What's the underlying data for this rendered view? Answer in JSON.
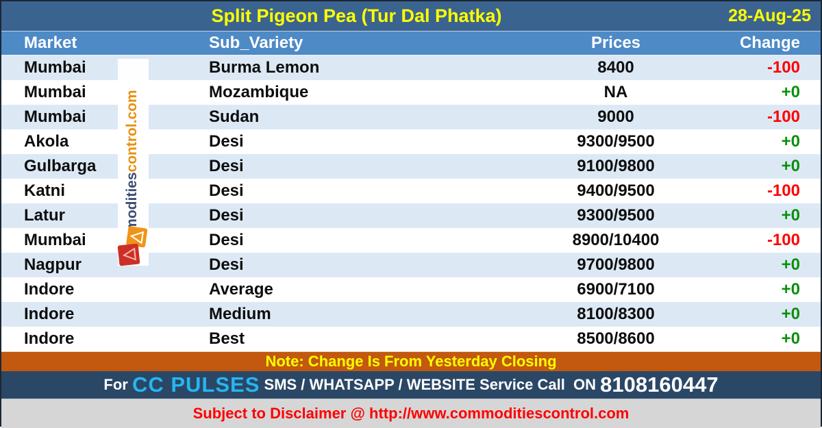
{
  "title": "Split Pigeon Pea (Tur Dal Phatka)",
  "date": "28-Aug-25",
  "columns": [
    "Market",
    "Sub_Variety",
    "Prices",
    "Change"
  ],
  "rows": [
    {
      "market": "Mumbai",
      "sub_variety": "Burma Lemon",
      "prices": "8400",
      "change": "-100"
    },
    {
      "market": "Mumbai",
      "sub_variety": "Mozambique",
      "prices": "NA",
      "change": "+0"
    },
    {
      "market": "Mumbai",
      "sub_variety": "Sudan",
      "prices": "9000",
      "change": "-100"
    },
    {
      "market": "Akola",
      "sub_variety": "Desi",
      "prices": "9300/9500",
      "change": "+0"
    },
    {
      "market": "Gulbarga",
      "sub_variety": "Desi",
      "prices": "9100/9800",
      "change": "+0"
    },
    {
      "market": "Katni",
      "sub_variety": "Desi",
      "prices": "9400/9500",
      "change": "-100"
    },
    {
      "market": "Latur",
      "sub_variety": "Desi",
      "prices": "9300/9500",
      "change": "+0"
    },
    {
      "market": "Mumbai",
      "sub_variety": "Desi",
      "prices": "8900/10400",
      "change": "-100"
    },
    {
      "market": "Nagpur",
      "sub_variety": "Desi",
      "prices": "9700/9800",
      "change": "+0"
    },
    {
      "market": "Indore",
      "sub_variety": "Average",
      "prices": "6900/7100",
      "change": "+0"
    },
    {
      "market": "Indore",
      "sub_variety": "Medium",
      "prices": "8100/8300",
      "change": "+0"
    },
    {
      "market": "Indore",
      "sub_variety": "Best",
      "prices": "8500/8600",
      "change": "+0"
    }
  ],
  "note": "Note: Change Is From Yesterday Closing",
  "footer": {
    "for_label": "For ",
    "brand": "CC PULSES",
    "services": " SMS / WHATSAPP / WEBSITE Service Call ",
    "on_label": " ON ",
    "phone": "8108160447"
  },
  "disclaimer": "Subject to Disclaimer @  http://www.commoditiescontrol.com",
  "watermark": {
    "navy_part": "commodities",
    "orange_part": "control.com"
  },
  "colors": {
    "title_band": "#3b6390",
    "header_band": "#4e8ac6",
    "row_alt": "#dce9f5",
    "note_band": "#c2590e",
    "footer_band": "#2b4766",
    "disclaimer_band": "#d6d6d6",
    "accent_yellow": "#ffff00",
    "accent_cyan": "#25b6f0",
    "change_negative": "#ff0000",
    "change_positive": "#0b8f0b"
  }
}
